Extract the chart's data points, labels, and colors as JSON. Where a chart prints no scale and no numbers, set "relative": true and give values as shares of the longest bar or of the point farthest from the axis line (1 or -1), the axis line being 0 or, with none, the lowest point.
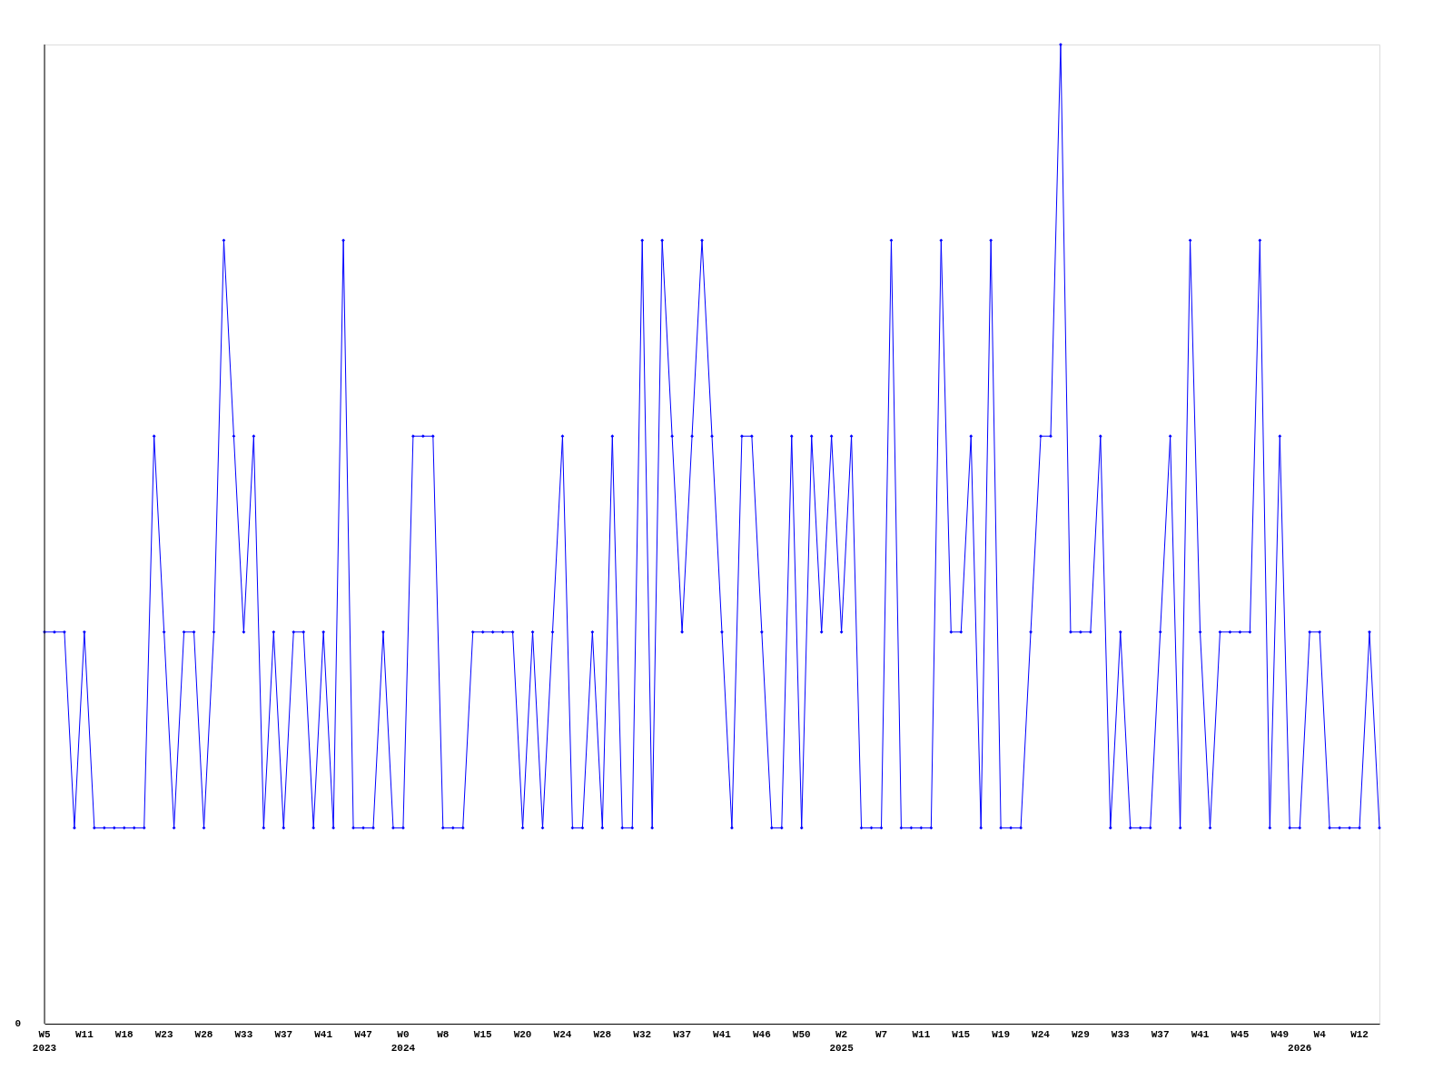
{
  "chart_data": {
    "type": "line",
    "relative": true,
    "color": "#0000ff",
    "marker": "diamond",
    "line_style": "solid",
    "annotations": [
      "0"
    ],
    "categories": [
      "W5\n2023",
      null,
      null,
      null,
      "W11",
      null,
      null,
      null,
      "W18",
      null,
      null,
      null,
      "W23",
      null,
      null,
      null,
      "W28",
      null,
      null,
      null,
      "W33",
      null,
      null,
      null,
      "W37",
      null,
      null,
      null,
      "W41",
      null,
      null,
      null,
      "W47",
      null,
      null,
      null,
      "W0\n2024",
      null,
      null,
      null,
      "W8",
      null,
      null,
      null,
      "W15",
      null,
      null,
      null,
      "W20",
      null,
      null,
      null,
      "W24",
      null,
      null,
      null,
      "W28",
      null,
      null,
      null,
      "W32",
      null,
      null,
      null,
      "W37",
      null,
      null,
      null,
      "W41",
      null,
      null,
      null,
      "W46",
      null,
      null,
      null,
      "W50",
      null,
      null,
      null,
      "W2\n2025",
      null,
      null,
      null,
      "W7",
      null,
      null,
      null,
      "W11",
      null,
      null,
      null,
      "W15",
      null,
      null,
      null,
      "W19",
      null,
      null,
      null,
      "W24",
      null,
      null,
      null,
      "W29",
      null,
      null,
      null,
      "W33",
      null,
      null,
      null,
      "W37",
      null,
      null,
      null,
      "W41",
      null,
      null,
      null,
      "W45",
      null,
      null,
      null,
      "W49",
      null,
      "\n2026",
      null,
      "W4",
      null,
      null,
      null,
      "W12",
      null,
      null
    ],
    "values": [
      0.4,
      0.4,
      0.4,
      0.2,
      0.4,
      0.2,
      0.2,
      0.2,
      0.2,
      0.2,
      0.2,
      0.6,
      0.4,
      0.2,
      0.4,
      0.4,
      0.2,
      0.4,
      0.8,
      0.6,
      0.4,
      0.6,
      0.2,
      0.4,
      0.2,
      0.4,
      0.4,
      0.2,
      0.4,
      0.2,
      0.8,
      0.2,
      0.2,
      0.2,
      0.4,
      0.2,
      0.2,
      0.6,
      0.6,
      0.6,
      0.2,
      0.2,
      0.2,
      0.4,
      0.4,
      0.4,
      0.4,
      0.4,
      0.2,
      0.4,
      0.2,
      0.4,
      0.6,
      0.2,
      0.2,
      0.4,
      0.2,
      0.6,
      0.2,
      0.2,
      0.8,
      0.2,
      0.8,
      0.6,
      0.4,
      0.6,
      0.8,
      0.6,
      0.4,
      0.2,
      0.6,
      0.6,
      0.4,
      0.2,
      0.2,
      0.6,
      0.2,
      0.6,
      0.4,
      0.6,
      0.4,
      0.6,
      0.2,
      0.2,
      0.2,
      0.8,
      0.2,
      0.2,
      0.2,
      0.2,
      0.8,
      0.4,
      0.4,
      0.6,
      0.2,
      0.8,
      0.2,
      0.2,
      0.2,
      0.4,
      0.6,
      0.6,
      1.0,
      0.4,
      0.4,
      0.4,
      0.6,
      0.2,
      0.4,
      0.2,
      0.2,
      0.2,
      0.4,
      0.6,
      0.2,
      0.8,
      0.4,
      0.2,
      0.4,
      0.4,
      0.4,
      0.4,
      0.8,
      0.2,
      0.6,
      0.2,
      0.2,
      0.4,
      0.4,
      0.2,
      0.2,
      0.2,
      0.2,
      0.4,
      0.2
    ]
  }
}
